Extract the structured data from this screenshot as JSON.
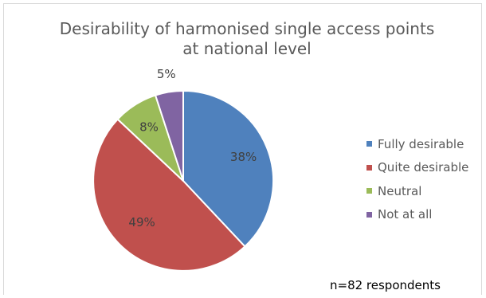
{
  "chart_data": {
    "type": "pie",
    "title_lines": [
      "Desirability of harmonised single access points",
      "at national level"
    ],
    "categories": [
      "Fully desirable",
      "Quite desirable",
      "Neutral",
      "Not at all"
    ],
    "values": [
      38,
      49,
      8,
      5
    ],
    "value_labels": [
      "38%",
      "49%",
      "8%",
      "5%"
    ],
    "colors": [
      "#4f81bd",
      "#c0504d",
      "#9bbb59",
      "#8064a2"
    ],
    "start_angle_deg": 0,
    "direction": "clockwise",
    "legend_position": "right",
    "note": "n=82 respondents"
  }
}
